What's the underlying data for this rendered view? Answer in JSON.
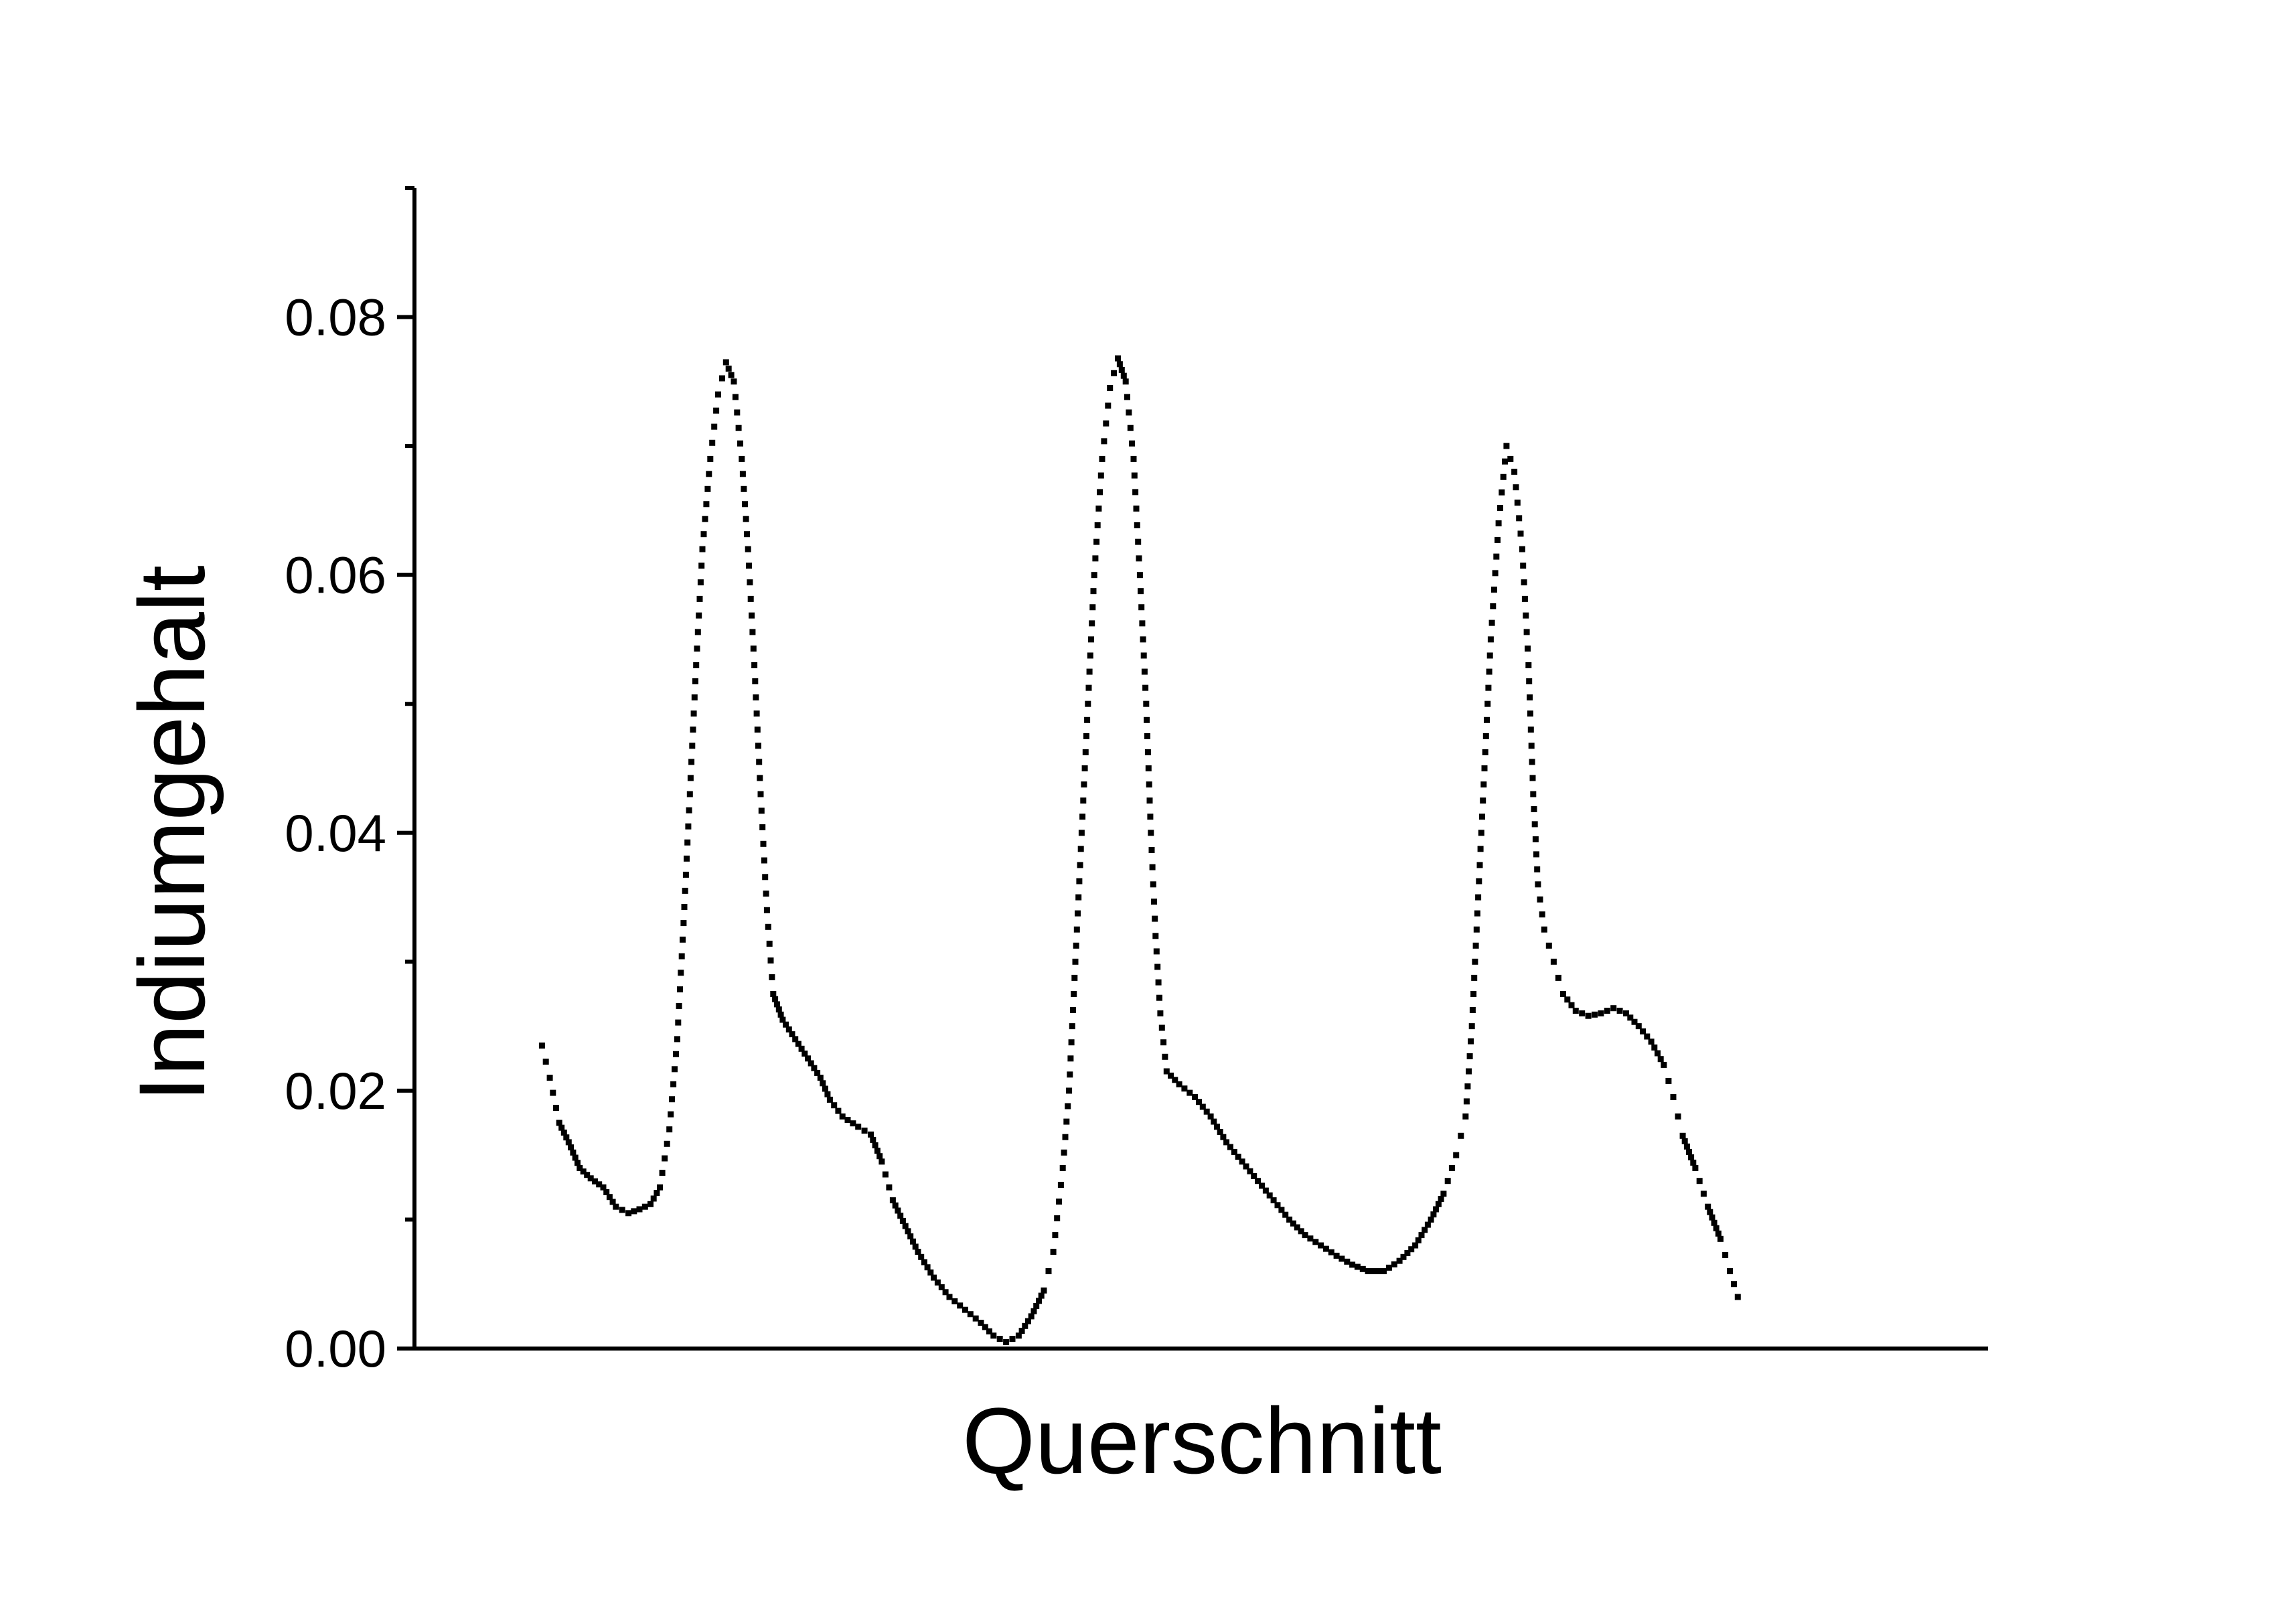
{
  "chart_data": {
    "type": "scatter",
    "title": "",
    "xlabel": "Querschnitt",
    "ylabel": "Indiumgehalt",
    "xlim": [
      0,
      1
    ],
    "ylim": [
      0,
      0.09
    ],
    "yticks": [
      "0.00",
      "0.02",
      "0.04",
      "0.06",
      "0.08"
    ],
    "ytick_values": [
      0,
      0.02,
      0.04,
      0.06,
      0.08
    ],
    "yminor_values": [
      0.01,
      0.03,
      0.05,
      0.07,
      0.09
    ],
    "x_tick_labels_shown": false,
    "grid": false,
    "legend": "none",
    "marker_color": "#000000",
    "series": [
      {
        "points": [
          [
            0.081,
            0.0235
          ],
          [
            0.086,
            0.021
          ],
          [
            0.092,
            0.0175
          ],
          [
            0.098,
            0.016
          ],
          [
            0.105,
            0.014
          ],
          [
            0.112,
            0.0132
          ],
          [
            0.12,
            0.0125
          ],
          [
            0.128,
            0.011
          ],
          [
            0.136,
            0.0105
          ],
          [
            0.143,
            0.0108
          ],
          [
            0.15,
            0.0112
          ],
          [
            0.156,
            0.0125
          ],
          [
            0.162,
            0.017
          ],
          [
            0.167,
            0.024
          ],
          [
            0.171,
            0.033
          ],
          [
            0.175,
            0.043
          ],
          [
            0.179,
            0.053
          ],
          [
            0.183,
            0.062
          ],
          [
            0.188,
            0.069
          ],
          [
            0.193,
            0.074
          ],
          [
            0.198,
            0.0765
          ],
          [
            0.203,
            0.075
          ],
          [
            0.208,
            0.069
          ],
          [
            0.212,
            0.062
          ],
          [
            0.216,
            0.053
          ],
          [
            0.22,
            0.043
          ],
          [
            0.224,
            0.034
          ],
          [
            0.228,
            0.0275
          ],
          [
            0.234,
            0.0255
          ],
          [
            0.242,
            0.024
          ],
          [
            0.25,
            0.0225
          ],
          [
            0.258,
            0.021
          ],
          [
            0.264,
            0.0193
          ],
          [
            0.272,
            0.018
          ],
          [
            0.282,
            0.0172
          ],
          [
            0.29,
            0.0166
          ],
          [
            0.297,
            0.0145
          ],
          [
            0.304,
            0.0115
          ],
          [
            0.312,
            0.0095
          ],
          [
            0.32,
            0.0075
          ],
          [
            0.33,
            0.0055
          ],
          [
            0.34,
            0.004
          ],
          [
            0.35,
            0.003
          ],
          [
            0.36,
            0.002
          ],
          [
            0.368,
            0.001
          ],
          [
            0.376,
            0.0005
          ],
          [
            0.384,
            0.001
          ],
          [
            0.392,
            0.0025
          ],
          [
            0.4,
            0.0045
          ],
          [
            0.406,
            0.0075
          ],
          [
            0.412,
            0.014
          ],
          [
            0.416,
            0.02
          ],
          [
            0.42,
            0.03
          ],
          [
            0.424,
            0.04
          ],
          [
            0.428,
            0.05
          ],
          [
            0.432,
            0.06
          ],
          [
            0.437,
            0.069
          ],
          [
            0.442,
            0.0745
          ],
          [
            0.447,
            0.0768
          ],
          [
            0.452,
            0.075
          ],
          [
            0.457,
            0.069
          ],
          [
            0.461,
            0.06
          ],
          [
            0.465,
            0.05
          ],
          [
            0.468,
            0.04
          ],
          [
            0.471,
            0.032
          ],
          [
            0.474,
            0.026
          ],
          [
            0.478,
            0.0215
          ],
          [
            0.486,
            0.0205
          ],
          [
            0.496,
            0.0195
          ],
          [
            0.506,
            0.018
          ],
          [
            0.516,
            0.016
          ],
          [
            0.526,
            0.0145
          ],
          [
            0.536,
            0.013
          ],
          [
            0.546,
            0.0115
          ],
          [
            0.556,
            0.01
          ],
          [
            0.566,
            0.0088
          ],
          [
            0.576,
            0.008
          ],
          [
            0.586,
            0.0072
          ],
          [
            0.596,
            0.0065
          ],
          [
            0.606,
            0.006
          ],
          [
            0.616,
            0.006
          ],
          [
            0.626,
            0.0068
          ],
          [
            0.636,
            0.008
          ],
          [
            0.646,
            0.01
          ],
          [
            0.654,
            0.012
          ],
          [
            0.662,
            0.015
          ],
          [
            0.668,
            0.018
          ],
          [
            0.672,
            0.025
          ],
          [
            0.676,
            0.035
          ],
          [
            0.68,
            0.045
          ],
          [
            0.684,
            0.055
          ],
          [
            0.689,
            0.064
          ],
          [
            0.694,
            0.07
          ],
          [
            0.699,
            0.068
          ],
          [
            0.704,
            0.062
          ],
          [
            0.708,
            0.053
          ],
          [
            0.711,
            0.043
          ],
          [
            0.714,
            0.036
          ],
          [
            0.718,
            0.0325
          ],
          [
            0.724,
            0.03
          ],
          [
            0.73,
            0.0275
          ],
          [
            0.738,
            0.0262
          ],
          [
            0.746,
            0.0258
          ],
          [
            0.754,
            0.026
          ],
          [
            0.762,
            0.0264
          ],
          [
            0.77,
            0.026
          ],
          [
            0.778,
            0.025
          ],
          [
            0.786,
            0.0238
          ],
          [
            0.794,
            0.022
          ],
          [
            0.8,
            0.0195
          ],
          [
            0.806,
            0.0165
          ],
          [
            0.814,
            0.014
          ],
          [
            0.822,
            0.011
          ],
          [
            0.83,
            0.0085
          ],
          [
            0.836,
            0.006
          ],
          [
            0.841,
            0.004
          ]
        ]
      }
    ]
  }
}
